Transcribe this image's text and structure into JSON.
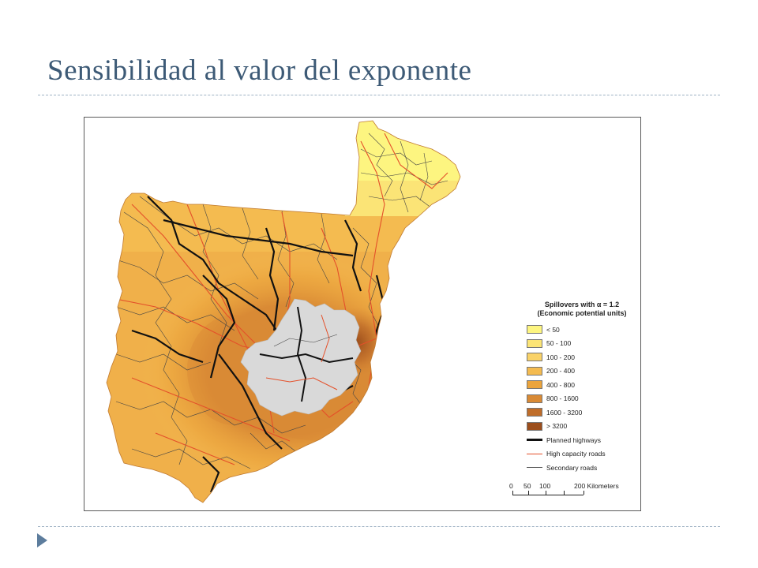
{
  "slide": {
    "title": "Sensibilidad al valor del exponente"
  },
  "map": {
    "legend": {
      "title_line1": "Spillovers with α = 1.2",
      "title_line2": "(Economic potential units)",
      "classes": [
        {
          "label": "< 50",
          "color": "#fdf580"
        },
        {
          "label": "50 - 100",
          "color": "#fbe476"
        },
        {
          "label": "100 - 200",
          "color": "#f9d268"
        },
        {
          "label": "200 - 400",
          "color": "#f4bb50"
        },
        {
          "label": "400 - 800",
          "color": "#eba43c"
        },
        {
          "label": "800 - 1600",
          "color": "#d98a35"
        },
        {
          "label": "1600 - 3200",
          "color": "#bf6d2a"
        },
        {
          "label": "> 3200",
          "color": "#9c4e1c"
        }
      ],
      "lines": [
        {
          "label": "Planned highways",
          "color": "#111111"
        },
        {
          "label": "High capacity roads",
          "color": "#e4502a"
        },
        {
          "label": "Secondary roads",
          "color": "#555555"
        }
      ]
    },
    "scale": {
      "labels": [
        "0",
        "50",
        "100",
        "200 Kilometers"
      ]
    },
    "colors": {
      "study_region": "#d9d9d9",
      "frame": "#5a5a5a"
    }
  }
}
